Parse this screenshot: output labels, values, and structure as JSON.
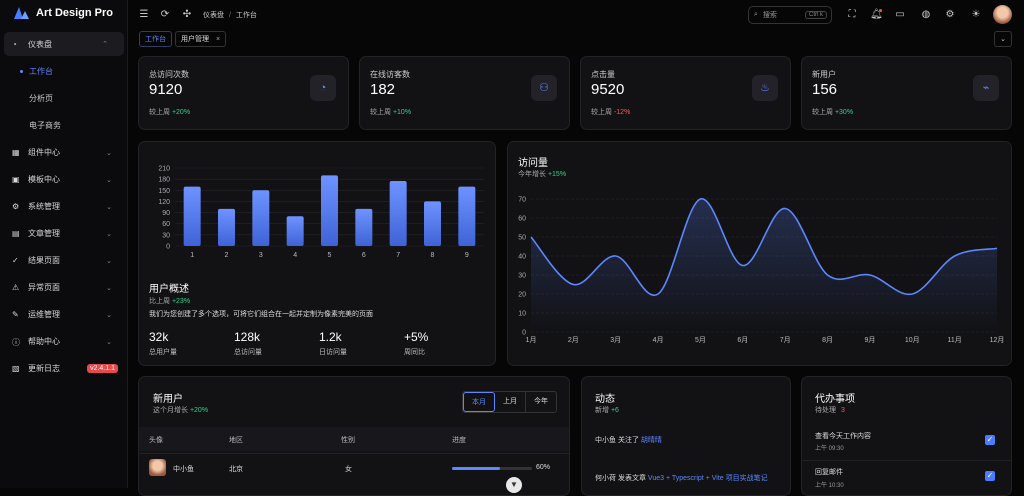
{
  "app": {
    "title": "Art Design Pro"
  },
  "sidebar": {
    "items": [
      {
        "label": "仪表盘",
        "icon": "dashboard-icon",
        "open": true,
        "children": [
          {
            "label": "工作台",
            "active": true
          },
          {
            "label": "分析页"
          },
          {
            "label": "电子商务"
          }
        ]
      },
      {
        "label": "组件中心",
        "icon": "components-icon"
      },
      {
        "label": "模板中心",
        "icon": "template-icon"
      },
      {
        "label": "系统管理",
        "icon": "gear-icon"
      },
      {
        "label": "文章管理",
        "icon": "article-icon"
      },
      {
        "label": "结果页面",
        "icon": "check-circle-icon"
      },
      {
        "label": "异常页面",
        "icon": "warning-icon"
      },
      {
        "label": "运维管理",
        "icon": "wrench-icon"
      },
      {
        "label": "帮助中心",
        "icon": "help-icon"
      },
      {
        "label": "更新日志",
        "icon": "log-icon",
        "badge": "v2.4.1.1"
      }
    ]
  },
  "header": {
    "breadcrumb": [
      "仪表盘",
      "工作台"
    ],
    "search_placeholder": "搜索",
    "search_shortcut": "Ctrl k"
  },
  "tabs": [
    {
      "label": "工作台",
      "active": true
    },
    {
      "label": "用户管理",
      "closable": true
    }
  ],
  "stats": [
    {
      "label": "总访问次数",
      "value": "9120",
      "compare": "较上周",
      "change": "+20%",
      "dir": "up",
      "icon": "chart-icon"
    },
    {
      "label": "在线访客数",
      "value": "182",
      "compare": "较上周",
      "change": "+10%",
      "dir": "up",
      "icon": "users-icon"
    },
    {
      "label": "点击量",
      "value": "9520",
      "compare": "较上周",
      "change": "-12%",
      "dir": "down",
      "icon": "fire-icon"
    },
    {
      "label": "新用户",
      "value": "156",
      "compare": "较上周",
      "change": "+30%",
      "dir": "up",
      "icon": "pulse-icon"
    }
  ],
  "overview": {
    "title": "用户概述",
    "sub": "比上周",
    "change": "+23%",
    "desc": "我们为您创建了多个选项，可将它们组合在一起并定制为像素完美的页面",
    "kpis": [
      {
        "value": "32k",
        "label": "总用户量"
      },
      {
        "value": "128k",
        "label": "总访问量"
      },
      {
        "value": "1.2k",
        "label": "日访问量"
      },
      {
        "value": "+5%",
        "label": "周同比"
      }
    ]
  },
  "visits": {
    "title": "访问量",
    "sub": "今年增长",
    "change": "+15%"
  },
  "new_users": {
    "title": "新用户",
    "sub": "这个月增长",
    "change": "+20%",
    "ranges": [
      "本月",
      "上月",
      "今年"
    ],
    "columns": [
      "头像",
      "地区",
      "性别",
      "进度"
    ],
    "rows": [
      {
        "name": "中小鱼",
        "region": "北京",
        "gender": "女",
        "progress": "60%",
        "progress_value": 0.6
      }
    ]
  },
  "activity": {
    "title": "动态",
    "sub": "新增",
    "count": "+6",
    "items": [
      {
        "user": "中小鱼",
        "action": "关注了",
        "target": "胡晴晴"
      },
      {
        "user": "何小荷",
        "action": "发表文章",
        "target": "Vue3 + Typescript + Vite 项目实战笔记"
      }
    ]
  },
  "todo": {
    "title": "代办事项",
    "sub": "待处理",
    "count": "3",
    "items": [
      {
        "title": "查看今天工作内容",
        "time": "上午 09:30"
      },
      {
        "title": "回复邮件",
        "time": "上午 10:30"
      }
    ]
  },
  "chart_data": [
    {
      "type": "bar",
      "categories": [
        "1",
        "2",
        "3",
        "4",
        "5",
        "6",
        "7",
        "8",
        "9"
      ],
      "values": [
        160,
        100,
        150,
        80,
        190,
        100,
        175,
        120,
        160
      ],
      "yticks": [
        0,
        30,
        60,
        90,
        120,
        150,
        180,
        210
      ],
      "ylim": [
        0,
        210
      ],
      "color": "#5d87ff"
    },
    {
      "type": "area",
      "x": [
        "1月",
        "2月",
        "3月",
        "4月",
        "5月",
        "6月",
        "7月",
        "8月",
        "9月",
        "10月",
        "11月",
        "12月"
      ],
      "values": [
        50,
        25,
        40,
        20,
        70,
        35,
        65,
        30,
        30,
        20,
        40,
        44
      ],
      "yticks": [
        0,
        10,
        20,
        30,
        40,
        50,
        60,
        70
      ],
      "ylim": [
        0,
        70
      ],
      "color": "#5d87ff"
    }
  ]
}
